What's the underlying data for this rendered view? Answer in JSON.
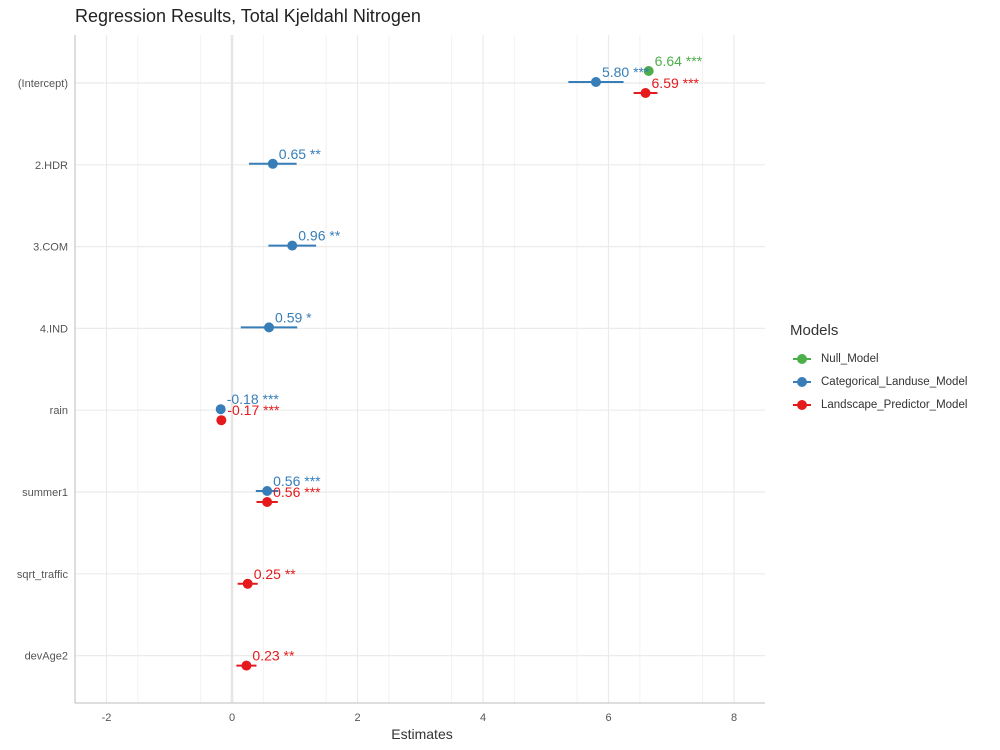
{
  "chart_data": {
    "type": "scatter",
    "title": "Regression Results, Total Kjeldahl Nitrogen",
    "xlabel": "Estimates",
    "ylabel": "",
    "xlim": [
      -2.5,
      8.5
    ],
    "xticks": [
      -2,
      0,
      2,
      4,
      6,
      8
    ],
    "terms": [
      "(Intercept)",
      "2.HDR",
      "3.COM",
      "4.IND",
      "rain",
      "summer1",
      "sqrt_traffic",
      "devAge2"
    ],
    "grid": true,
    "legend_position": "right",
    "legend_title": "Models",
    "series": [
      {
        "name": "Null_Model",
        "color": "#4daf4a",
        "points": [
          {
            "term": "(Intercept)",
            "estimate": 6.64,
            "ci_low": 6.57,
            "ci_high": 6.71,
            "label": "6.64 ***"
          }
        ]
      },
      {
        "name": "Categorical_Landuse_Model",
        "color": "#377eb8",
        "points": [
          {
            "term": "(Intercept)",
            "estimate": 5.8,
            "ci_low": 5.36,
            "ci_high": 6.24,
            "label": "5.80 ***"
          },
          {
            "term": "2.HDR",
            "estimate": 0.65,
            "ci_low": 0.27,
            "ci_high": 1.03,
            "label": "0.65 **"
          },
          {
            "term": "3.COM",
            "estimate": 0.96,
            "ci_low": 0.58,
            "ci_high": 1.34,
            "label": "0.96 **"
          },
          {
            "term": "4.IND",
            "estimate": 0.59,
            "ci_low": 0.14,
            "ci_high": 1.04,
            "label": "0.59 *"
          },
          {
            "term": "rain",
            "estimate": -0.18,
            "ci_low": -0.22,
            "ci_high": -0.14,
            "label": "-0.18 ***"
          },
          {
            "term": "summer1",
            "estimate": 0.56,
            "ci_low": 0.38,
            "ci_high": 0.74,
            "label": "0.56 ***"
          }
        ]
      },
      {
        "name": "Landscape_Predictor_Model",
        "color": "#e41a1c",
        "points": [
          {
            "term": "(Intercept)",
            "estimate": 6.59,
            "ci_low": 6.4,
            "ci_high": 6.78,
            "label": "6.59 ***"
          },
          {
            "term": "rain",
            "estimate": -0.17,
            "ci_low": -0.21,
            "ci_high": -0.13,
            "label": "-0.17 ***"
          },
          {
            "term": "summer1",
            "estimate": 0.56,
            "ci_low": 0.39,
            "ci_high": 0.73,
            "label": "0.56 ***"
          },
          {
            "term": "sqrt_traffic",
            "estimate": 0.25,
            "ci_low": 0.09,
            "ci_high": 0.41,
            "label": "0.25 **"
          },
          {
            "term": "devAge2",
            "estimate": 0.23,
            "ci_low": 0.07,
            "ci_high": 0.39,
            "label": "0.23 **"
          }
        ]
      }
    ]
  }
}
